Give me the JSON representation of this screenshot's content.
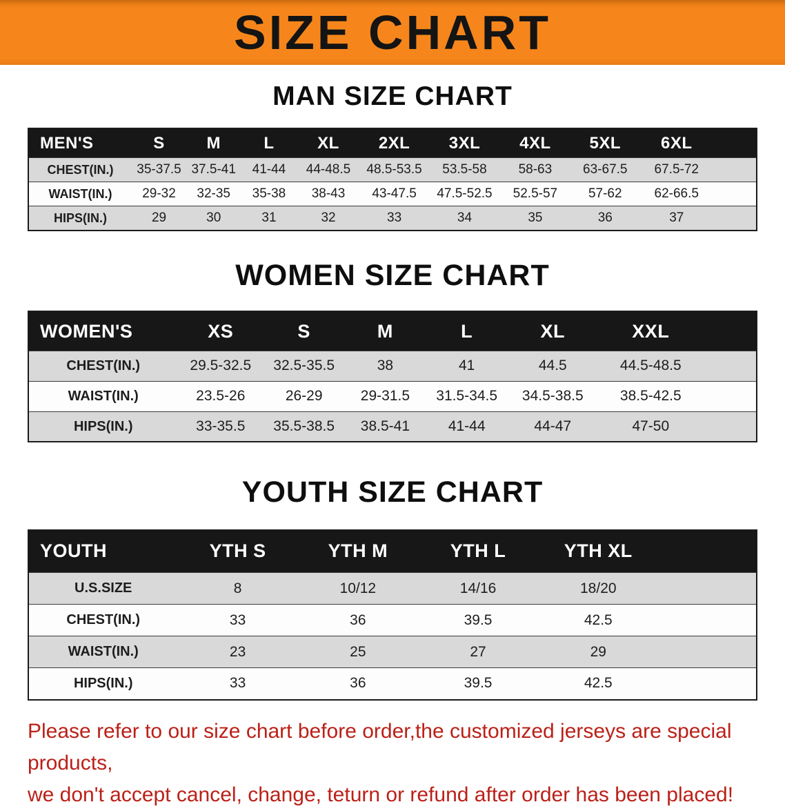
{
  "banner": {
    "title": "SIZE CHART",
    "bg_color": "#f6861c",
    "title_color": "#141414"
  },
  "men": {
    "heading": "MAN SIZE CHART",
    "table": {
      "header": [
        "MEN'S",
        "S",
        "M",
        "L",
        "XL",
        "2XL",
        "3XL",
        "4XL",
        "5XL",
        "6XL"
      ],
      "rows": [
        [
          "CHEST(IN.)",
          "35-37.5",
          "37.5-41",
          "41-44",
          "44-48.5",
          "48.5-53.5",
          "53.5-58",
          "58-63",
          "63-67.5",
          "67.5-72"
        ],
        [
          "WAIST(IN.)",
          "29-32",
          "32-35",
          "35-38",
          "38-43",
          "43-47.5",
          "47.5-52.5",
          "52.5-57",
          "57-62",
          "62-66.5"
        ],
        [
          "HIPS(IN.)",
          "29",
          "30",
          "31",
          "32",
          "33",
          "34",
          "35",
          "36",
          "37"
        ]
      ]
    }
  },
  "women": {
    "heading": "WOMEN SIZE CHART",
    "table": {
      "header": [
        "WOMEN'S",
        "XS",
        "S",
        "M",
        "L",
        "XL",
        "XXL"
      ],
      "rows": [
        [
          "CHEST(IN.)",
          "29.5-32.5",
          "32.5-35.5",
          "38",
          "41",
          "44.5",
          "44.5-48.5"
        ],
        [
          "WAIST(IN.)",
          "23.5-26",
          "26-29",
          "29-31.5",
          "31.5-34.5",
          "34.5-38.5",
          "38.5-42.5"
        ],
        [
          "HIPS(IN.)",
          "33-35.5",
          "35.5-38.5",
          "38.5-41",
          "41-44",
          "44-47",
          "47-50"
        ]
      ]
    }
  },
  "youth": {
    "heading": "YOUTH SIZE CHART",
    "table": {
      "header": [
        "YOUTH",
        "YTH S",
        "YTH M",
        "YTH L",
        "YTH XL"
      ],
      "rows": [
        [
          "U.S.SIZE",
          "8",
          "10/12",
          "14/16",
          "18/20"
        ],
        [
          "CHEST(IN.)",
          "33",
          "36",
          "39.5",
          "42.5"
        ],
        [
          "WAIST(IN.)",
          "23",
          "25",
          "27",
          "29"
        ],
        [
          "HIPS(IN.)",
          "33",
          "36",
          "39.5",
          "42.5"
        ]
      ]
    }
  },
  "footer": {
    "line1": "Please refer to our size chart before order,the customized jerseys are special products,",
    "line2": "we don't accept cancel, change, teturn or refund after order has been placed!",
    "text_color": "#bb2018"
  }
}
